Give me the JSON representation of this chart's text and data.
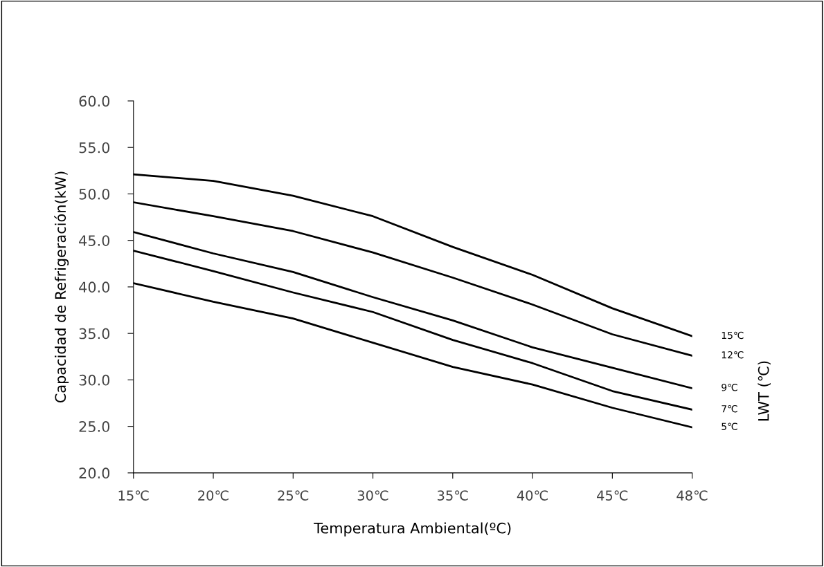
{
  "chart_data": {
    "type": "line",
    "xlabel": "Temperatura Ambiental(ºC)",
    "ylabel": "Capacidad de Refrigeración(kW)",
    "legend_title": "LWT (℃)",
    "categories": [
      "15℃",
      "20℃",
      "25℃",
      "30℃",
      "35℃",
      "40℃",
      "45℃",
      "48℃"
    ],
    "ylim": [
      20,
      60
    ],
    "yticks": [
      {
        "value": 20,
        "label": "20.0"
      },
      {
        "value": 25,
        "label": "25.0"
      },
      {
        "value": 30,
        "label": "30.0"
      },
      {
        "value": 35,
        "label": "35.0"
      },
      {
        "value": 40,
        "label": "40.0"
      },
      {
        "value": 45,
        "label": "45.0"
      },
      {
        "value": 50,
        "label": "50.0"
      },
      {
        "value": 55,
        "label": "55.0"
      },
      {
        "value": 60,
        "label": "60.0"
      }
    ],
    "grid": false,
    "legend": false,
    "marker": "none",
    "line_style": "solid",
    "series": [
      {
        "name": "15℃",
        "color": "#000000",
        "values": [
          52.1,
          51.4,
          49.8,
          47.6,
          44.3,
          41.3,
          37.7,
          34.7
        ]
      },
      {
        "name": "12℃",
        "color": "#000000",
        "values": [
          49.1,
          47.6,
          46.0,
          43.7,
          41.0,
          38.1,
          34.9,
          32.6
        ]
      },
      {
        "name": "9℃",
        "color": "#000000",
        "values": [
          45.9,
          43.6,
          41.6,
          38.9,
          36.4,
          33.5,
          31.3,
          29.1
        ]
      },
      {
        "name": "7℃",
        "color": "#000000",
        "values": [
          43.9,
          41.7,
          39.4,
          37.3,
          34.3,
          31.8,
          28.8,
          26.8
        ]
      },
      {
        "name": "5℃",
        "color": "#000000",
        "values": [
          40.4,
          38.4,
          36.6,
          34.0,
          31.4,
          29.5,
          27.0,
          24.9
        ]
      }
    ]
  }
}
